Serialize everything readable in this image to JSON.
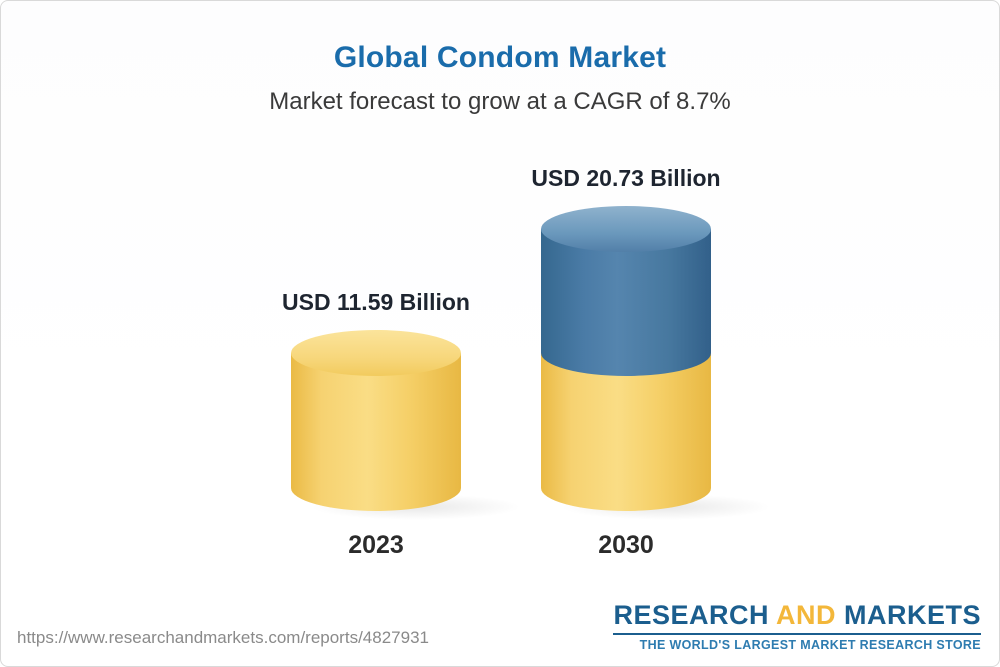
{
  "header": {
    "title": "Global Condom Market",
    "subtitle": "Market forecast to grow at a CAGR of 8.7%"
  },
  "chart_data": {
    "type": "bar",
    "bar_style": "3d-cylinder",
    "title": "Global Condom Market",
    "subtitle": "Market forecast to grow at a CAGR of 8.7%",
    "unit": "USD Billion",
    "cagr_percent": 8.7,
    "categories": [
      "2023",
      "2030"
    ],
    "values": [
      11.59,
      20.73
    ],
    "value_labels": [
      "USD 11.59 Billion",
      "USD 20.73 Billion"
    ],
    "series_note": "2030 bar shows 2023 base in gold with incremental growth in blue",
    "legend": "none",
    "axes": "none",
    "colors": {
      "title_blue": "#1A6CAB",
      "bar_gold": "#F5CF67",
      "bar_blue": "#4A7BA6",
      "label_text": "#1E2530"
    }
  },
  "footer": {
    "url": "https://www.researchandmarkets.com/reports/4827931",
    "logo": {
      "research": "RESEARCH",
      "and": "AND",
      "markets": "MARKETS",
      "tagline": "THE WORLD'S LARGEST MARKET RESEARCH STORE",
      "brand_blue": "#1B5E8E",
      "brand_gold": "#F3B73A"
    }
  }
}
